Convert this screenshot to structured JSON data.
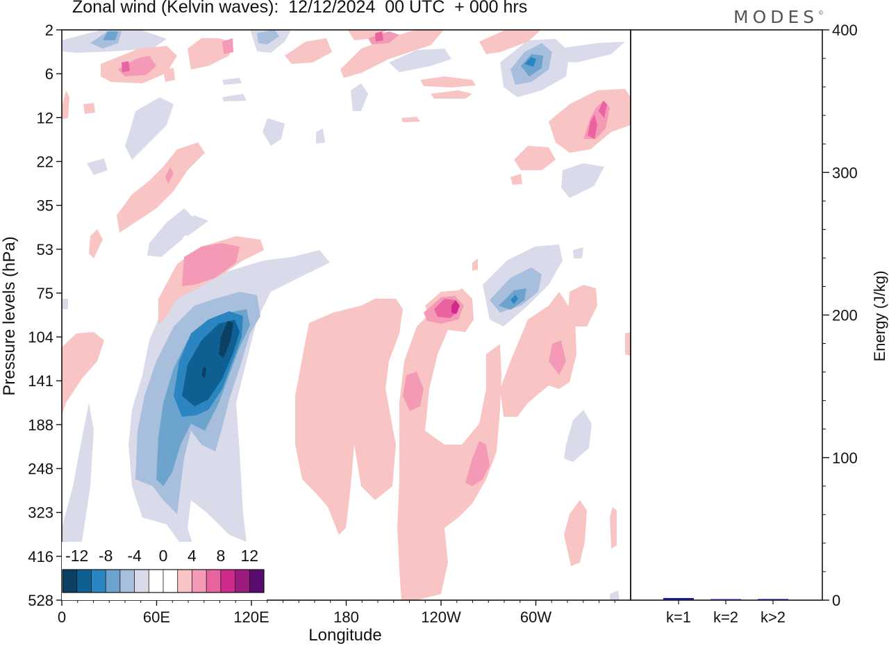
{
  "title": "Zonal wind (Kelvin waves):  12/12/2024  00 UTC  + 000 hrs",
  "logo": "MODES",
  "logo_mark": "©",
  "chart_data": [
    {
      "type": "heatmap",
      "title": "Zonal wind (Kelvin waves):  12/12/2024  00 UTC  + 000 hrs",
      "xlabel": "Longitude",
      "ylabel": "Pressure levels (hPa)",
      "x_ticks": [
        "0",
        "60E",
        "120E",
        "180",
        "120W",
        "60W"
      ],
      "x_tick_values": [
        0,
        60,
        120,
        180,
        240,
        300
      ],
      "xlim": [
        0,
        360
      ],
      "y_ticks": [
        "2",
        "6",
        "12",
        "22",
        "35",
        "53",
        "75",
        "104",
        "141",
        "188",
        "248",
        "323",
        "416",
        "528"
      ],
      "y_scale": "pressure levels (top = 2 hPa, bottom = 528 hPa)",
      "colorbar": {
        "labels": [
          "-12",
          "-8",
          "-4",
          "0",
          "4",
          "8",
          "12"
        ],
        "colors": [
          "#0b3f63",
          "#0f5f93",
          "#2b85c0",
          "#6da4ce",
          "#a7bedd",
          "#d9dbea",
          "#ffffff",
          "#ffffff",
          "#f9c5c4",
          "#f59ab6",
          "#ea63a1",
          "#cf2a8c",
          "#9c1b7e",
          "#5a0c6e"
        ]
      },
      "features": [
        {
          "kind": "min",
          "lon": 100,
          "level": "104-141",
          "value": -12
        },
        {
          "kind": "min",
          "lon": 90,
          "level": "141",
          "value": -12
        },
        {
          "kind": "min",
          "lon": 60,
          "level": "248",
          "value": -8
        },
        {
          "kind": "max",
          "lon": 230,
          "level": "75-104",
          "value": 8
        },
        {
          "kind": "max",
          "lon": 80,
          "level": "53-75",
          "value": 6
        },
        {
          "kind": "max",
          "lon": 220,
          "level": "141",
          "value": 6
        },
        {
          "kind": "max",
          "lon": 263,
          "level": "248",
          "value": 6
        },
        {
          "kind": "max",
          "lon": 313,
          "level": "104-141",
          "value": 6
        },
        {
          "kind": "min",
          "lon": 285,
          "level": "75",
          "value": -6
        },
        {
          "kind": "min",
          "lon": 295,
          "level": "6",
          "value": -6
        }
      ]
    },
    {
      "type": "bar",
      "ylabel": "Energy (J/kg)",
      "categories": [
        "k=1",
        "k=2",
        "k>2"
      ],
      "values": [
        1.5,
        0.3,
        0.8
      ],
      "ylim": [
        0,
        400
      ],
      "y_ticks": [
        "0",
        "100",
        "200",
        "300",
        "400"
      ],
      "bar_color": "#1c1c80"
    }
  ]
}
